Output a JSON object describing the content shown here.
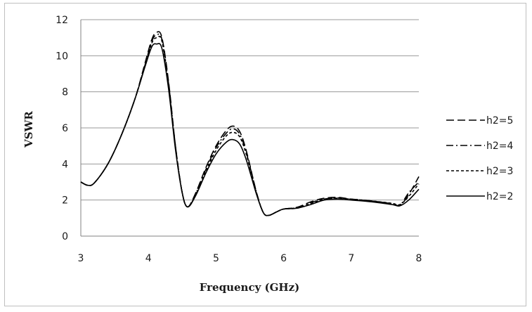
{
  "chart_data": {
    "type": "line",
    "title": "",
    "xlabel": "Frequency (GHz)",
    "ylabel": "VSWR",
    "xlim": [
      3,
      8
    ],
    "ylim": [
      0,
      12
    ],
    "xticks": [
      3,
      4,
      5,
      6,
      7,
      8
    ],
    "yticks": [
      0,
      2,
      4,
      6,
      8,
      10,
      12
    ],
    "grid": "horizontal",
    "legend_position": "right",
    "series": [
      {
        "name": "h2=5",
        "style": "long-dash",
        "x": [
          3.0,
          3.1,
          3.2,
          3.4,
          3.6,
          3.8,
          3.95,
          4.05,
          4.12,
          4.2,
          4.3,
          4.4,
          4.5,
          4.58,
          4.7,
          4.85,
          5.0,
          5.15,
          5.25,
          5.35,
          5.45,
          5.6,
          5.7,
          5.78,
          5.9,
          6.0,
          6.2,
          6.4,
          6.6,
          6.8,
          7.0,
          7.3,
          7.6,
          7.72,
          7.85,
          8.0
        ],
        "y": [
          3.0,
          2.82,
          2.95,
          4.0,
          5.6,
          7.6,
          9.6,
          10.9,
          11.3,
          11.0,
          8.5,
          5.0,
          2.4,
          1.62,
          2.4,
          3.8,
          5.0,
          5.85,
          6.1,
          5.8,
          4.7,
          2.4,
          1.3,
          1.15,
          1.35,
          1.5,
          1.6,
          1.9,
          2.1,
          2.15,
          2.05,
          1.95,
          1.8,
          1.7,
          2.3,
          3.3
        ]
      },
      {
        "name": "h2=4",
        "style": "dash-dot",
        "x": [
          3.0,
          3.1,
          3.2,
          3.4,
          3.6,
          3.8,
          3.95,
          4.05,
          4.12,
          4.2,
          4.3,
          4.4,
          4.5,
          4.58,
          4.7,
          4.85,
          5.0,
          5.15,
          5.25,
          5.35,
          5.45,
          5.6,
          5.7,
          5.78,
          5.9,
          6.0,
          6.2,
          6.4,
          6.6,
          6.8,
          7.0,
          7.3,
          7.6,
          7.72,
          7.85,
          8.0
        ],
        "y": [
          3.0,
          2.82,
          2.95,
          4.0,
          5.6,
          7.6,
          9.5,
          10.8,
          11.15,
          10.9,
          8.4,
          5.0,
          2.4,
          1.62,
          2.35,
          3.7,
          4.9,
          5.7,
          5.95,
          5.65,
          4.6,
          2.4,
          1.3,
          1.15,
          1.35,
          1.5,
          1.58,
          1.85,
          2.05,
          2.12,
          2.05,
          1.95,
          1.8,
          1.72,
          2.4,
          3.0
        ]
      },
      {
        "name": "h2=3",
        "style": "short-dash",
        "x": [
          3.0,
          3.1,
          3.2,
          3.4,
          3.6,
          3.8,
          3.95,
          4.05,
          4.12,
          4.2,
          4.3,
          4.4,
          4.5,
          4.58,
          4.7,
          4.85,
          5.0,
          5.15,
          5.25,
          5.35,
          5.45,
          5.6,
          5.7,
          5.78,
          5.9,
          6.0,
          6.2,
          6.4,
          6.6,
          6.8,
          7.0,
          7.3,
          7.6,
          7.72,
          7.85,
          8.0
        ],
        "y": [
          3.0,
          2.82,
          2.95,
          4.0,
          5.6,
          7.6,
          9.45,
          10.7,
          11.0,
          10.8,
          8.3,
          4.9,
          2.4,
          1.62,
          2.3,
          3.6,
          4.75,
          5.55,
          5.75,
          5.5,
          4.5,
          2.35,
          1.3,
          1.15,
          1.35,
          1.5,
          1.55,
          1.8,
          2.05,
          2.1,
          2.05,
          1.95,
          1.82,
          1.75,
          2.2,
          2.9
        ]
      },
      {
        "name": "h2=2",
        "style": "solid",
        "x": [
          3.0,
          3.1,
          3.2,
          3.4,
          3.6,
          3.8,
          3.95,
          4.05,
          4.12,
          4.2,
          4.3,
          4.4,
          4.5,
          4.58,
          4.7,
          4.85,
          5.0,
          5.15,
          5.25,
          5.35,
          5.45,
          5.6,
          5.7,
          5.78,
          5.9,
          6.0,
          6.2,
          6.4,
          6.6,
          6.8,
          7.0,
          7.3,
          7.6,
          7.72,
          7.85,
          8.0
        ],
        "y": [
          3.0,
          2.82,
          2.95,
          4.0,
          5.6,
          7.6,
          9.4,
          10.5,
          10.65,
          10.4,
          8.1,
          4.8,
          2.4,
          1.62,
          2.25,
          3.5,
          4.55,
          5.2,
          5.35,
          5.1,
          4.2,
          2.3,
          1.3,
          1.15,
          1.35,
          1.5,
          1.55,
          1.75,
          2.0,
          2.05,
          2.0,
          1.9,
          1.75,
          1.68,
          2.0,
          2.6
        ]
      }
    ]
  },
  "colors": {
    "line": "#000000",
    "grid": "#9a9a9a",
    "axis": "#808080",
    "frame": "#bfbfbf"
  }
}
